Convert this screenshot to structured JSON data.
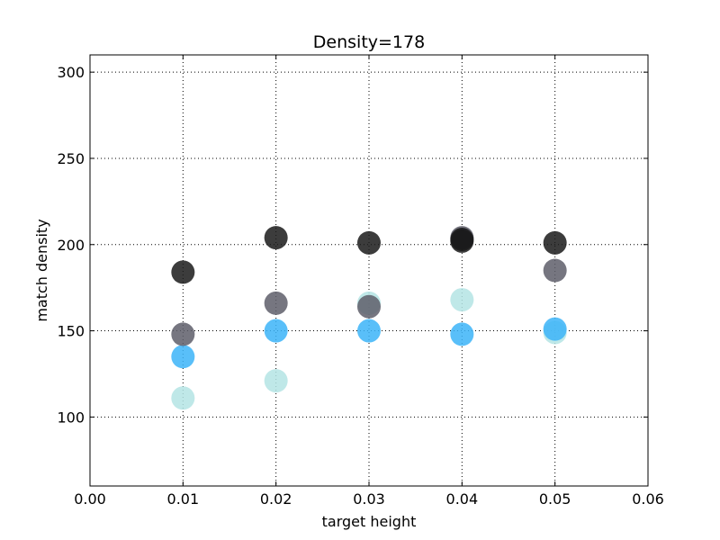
{
  "chart_data": {
    "type": "scatter",
    "title": "Density=178",
    "xlabel": "target height",
    "ylabel": "match density",
    "xlim": [
      0.0,
      0.06
    ],
    "ylim": [
      60,
      310
    ],
    "xticks": [
      0.0,
      0.01,
      0.02,
      0.03,
      0.04,
      0.05,
      0.06
    ],
    "xtick_labels": [
      "0.00",
      "0.01",
      "0.02",
      "0.03",
      "0.04",
      "0.05",
      "0.06"
    ],
    "yticks": [
      100,
      150,
      200,
      250,
      300
    ],
    "ytick_labels": [
      "100",
      "150",
      "200",
      "250",
      "300"
    ],
    "grid": true,
    "series": [
      {
        "color": "#1a1a1a",
        "points": [
          {
            "x": 0.01,
            "y": 184
          },
          {
            "x": 0.02,
            "y": 204
          },
          {
            "x": 0.03,
            "y": 201
          },
          {
            "x": 0.04,
            "y": 203
          },
          {
            "x": 0.04,
            "y": 202
          },
          {
            "x": 0.05,
            "y": 201
          }
        ]
      },
      {
        "color": "#5e5e6a",
        "points": [
          {
            "x": 0.01,
            "y": 148
          },
          {
            "x": 0.02,
            "y": 166
          },
          {
            "x": 0.03,
            "y": 164
          },
          {
            "x": 0.04,
            "y": 204
          },
          {
            "x": 0.05,
            "y": 185
          }
        ]
      },
      {
        "color": "#3cb4f8",
        "points": [
          {
            "x": 0.01,
            "y": 135
          },
          {
            "x": 0.02,
            "y": 150
          },
          {
            "x": 0.03,
            "y": 150
          },
          {
            "x": 0.04,
            "y": 148
          },
          {
            "x": 0.05,
            "y": 151
          }
        ]
      },
      {
        "color": "#b4e4e4",
        "points": [
          {
            "x": 0.01,
            "y": 111
          },
          {
            "x": 0.02,
            "y": 121
          },
          {
            "x": 0.03,
            "y": 166
          },
          {
            "x": 0.04,
            "y": 168
          },
          {
            "x": 0.05,
            "y": 149
          }
        ]
      }
    ]
  }
}
